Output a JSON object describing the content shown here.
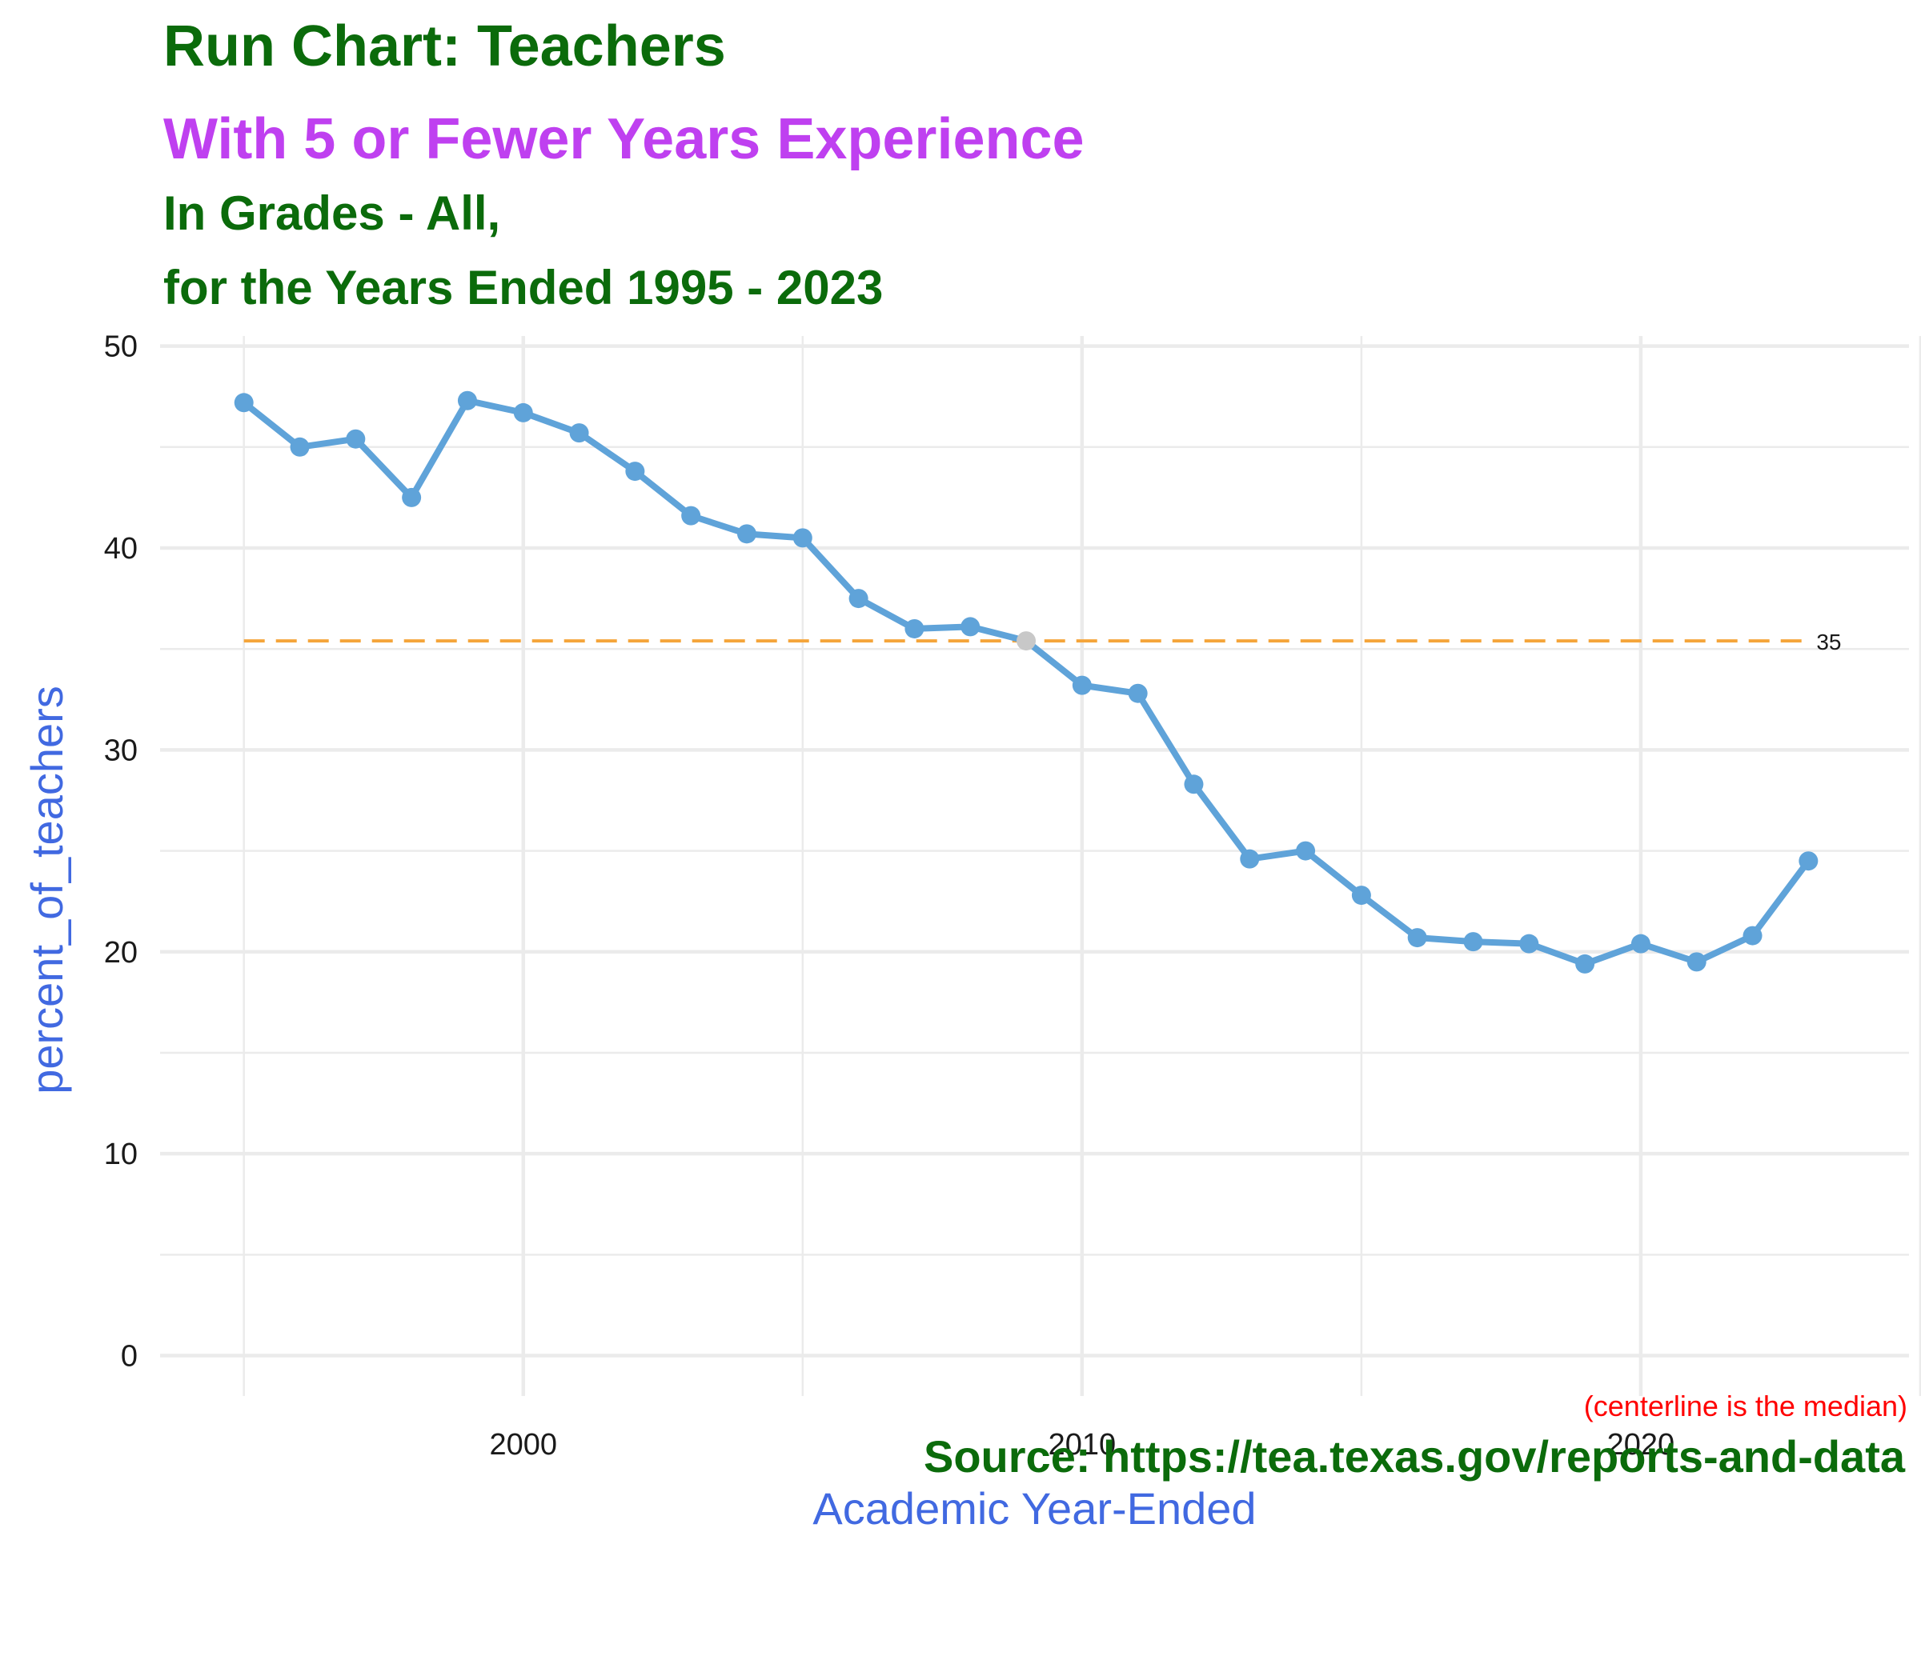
{
  "title": "Run Chart: Teachers",
  "subtitle": "With 5 or Fewer Years Experience",
  "subtitle2": "In Grades - All,",
  "subtitle3": "for the Years Ended 1995 - 2023",
  "caption": "Source:  https://tea.texas.gov/reports-and-data",
  "colors": {
    "title": "#0b6b0b",
    "subtitle": "#bf40f0",
    "axis_title": "#4169e1",
    "series": "#5fa3d9",
    "centerline": "#f5a53a",
    "highlight_point": "#c8c8c8",
    "note": "#ff0000",
    "grid": "#ebebeb"
  },
  "chart_data": {
    "type": "line",
    "xlabel": "Academic Year-Ended",
    "ylabel": "percent_of_teachers",
    "xlim": [
      1993.5,
      2024.8
    ],
    "ylim": [
      -2,
      50.5
    ],
    "x_ticks": [
      2000,
      2010,
      2020
    ],
    "y_ticks": [
      0,
      10,
      20,
      30,
      40,
      50
    ],
    "grid": true,
    "series": [
      {
        "x": [
          1995,
          1996,
          1997,
          1998,
          1999,
          2000,
          2001,
          2002,
          2003,
          2004,
          2005,
          2006,
          2007,
          2008,
          2009,
          2010,
          2011,
          2012,
          2013,
          2014,
          2015,
          2016,
          2017,
          2018,
          2019,
          2020,
          2021,
          2022,
          2023
        ],
        "values": [
          47.2,
          45.0,
          45.4,
          42.5,
          47.3,
          46.7,
          45.7,
          43.8,
          41.6,
          40.7,
          40.5,
          37.5,
          36.0,
          36.1,
          35.4,
          33.2,
          32.8,
          28.3,
          24.6,
          25.0,
          22.8,
          20.7,
          20.5,
          20.4,
          19.4,
          20.4,
          19.5,
          20.8,
          24.5
        ]
      }
    ],
    "highlighted_point_x": 2009,
    "centerline": {
      "value": 35.4,
      "label": "35",
      "style": "dashed"
    },
    "annotation": "(centerline is the median)"
  }
}
